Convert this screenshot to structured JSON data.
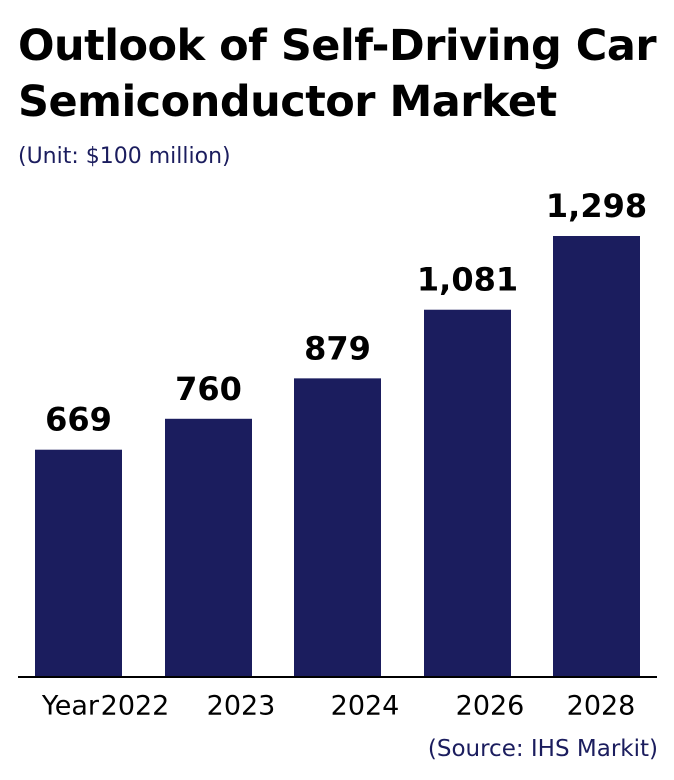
{
  "chart_data": {
    "type": "bar",
    "title": "Outlook of Self-Driving Car Semiconductor Market",
    "subtitle": "(Unit: $100 million)",
    "xlabel": "Year",
    "categories": [
      "2022",
      "2023",
      "2024",
      "2026",
      "2028"
    ],
    "values": [
      669,
      760,
      879,
      1081,
      1298
    ],
    "value_labels": [
      "669",
      "760",
      "879",
      "1,081",
      "1,298"
    ],
    "color": "#1b1d5e",
    "source": "(Source: IHS Markit)"
  }
}
